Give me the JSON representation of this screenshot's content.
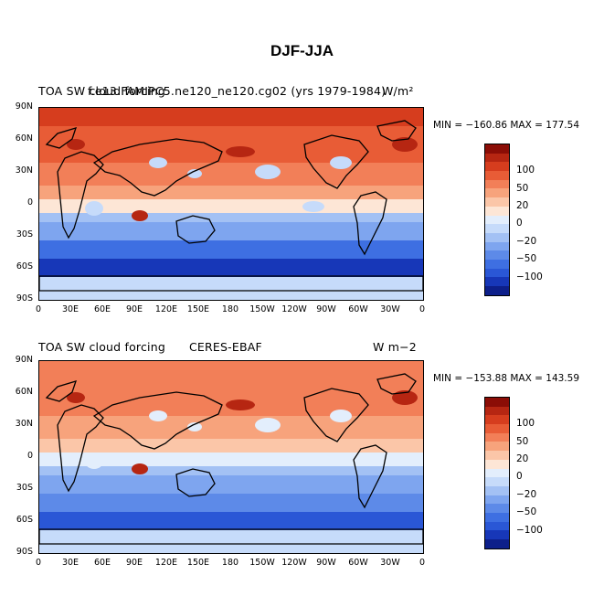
{
  "title": "DJF-JJA",
  "colors": {
    "scale": [
      "#0d1f8a",
      "#1737b8",
      "#2a57d6",
      "#3e6fe2",
      "#5d8ae8",
      "#7ea5ef",
      "#a3c1f4",
      "#c6dbfa",
      "#e3eefc",
      "#fde6d6",
      "#fbc6a8",
      "#f7a37c",
      "#f27f58",
      "#e85c36",
      "#d63d1e",
      "#b62612",
      "#8b0d06"
    ],
    "coast": "#000000"
  },
  "panels": [
    {
      "left_title": "TOA SW cloud forcing",
      "center_title": "f.e13.FAMIPC5.ne120_ne120.cg02 (yrs 1979-1984)",
      "units": "W/m²",
      "min_max": "MIN = −160.86 MAX = 177.54"
    },
    {
      "left_title": "TOA SW cloud forcing",
      "center_title": "CERES-EBAF",
      "units": "W m−2",
      "min_max": "MIN = −153.88 MAX = 143.59"
    }
  ],
  "axes": {
    "lat_labels": [
      "90N",
      "60N",
      "30N",
      "0",
      "30S",
      "60S",
      "90S"
    ],
    "lon_labels": [
      "0",
      "30E",
      "60E",
      "90E",
      "120E",
      "150E",
      "180",
      "150W",
      "120W",
      "90W",
      "60W",
      "30W",
      "0"
    ]
  },
  "colorbar": {
    "labels": [
      "100",
      "50",
      "20",
      "0",
      "−20",
      "−50",
      "−100"
    ]
  }
}
